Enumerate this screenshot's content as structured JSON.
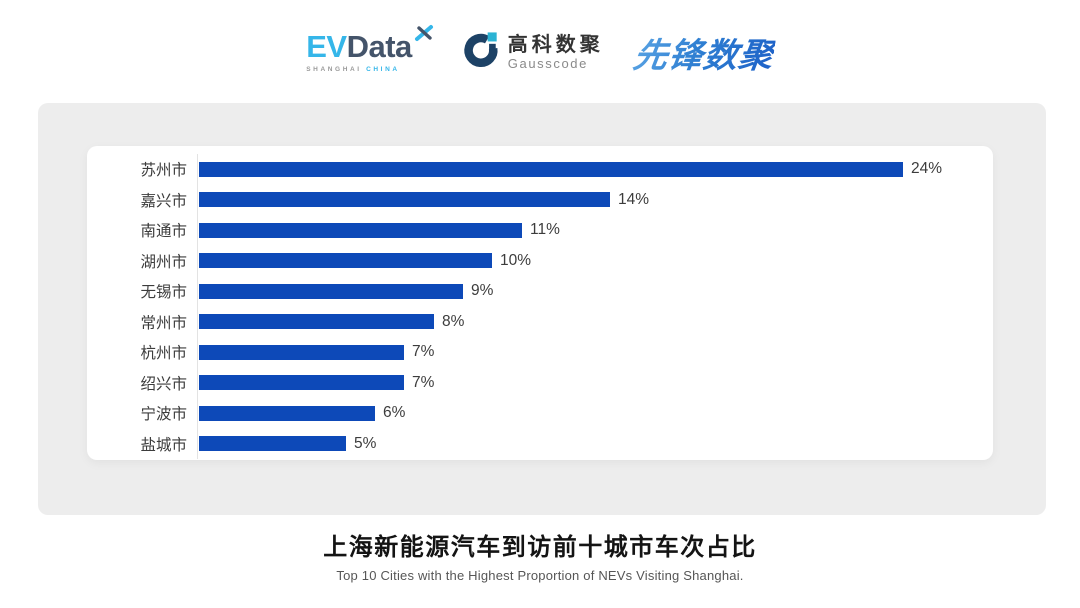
{
  "header": {
    "evdata_logo": {
      "ev": "EV",
      "data": "Data",
      "sub_left": "SHANGHAI",
      "sub_right": "CHINA"
    },
    "gausscode_logo": {
      "cn": "高科数聚",
      "en": "Gausscode"
    },
    "pioneer_logo": {
      "text": "先锋数聚"
    }
  },
  "chart_data": {
    "type": "bar",
    "orientation": "horizontal",
    "categories": [
      "苏州市",
      "嘉兴市",
      "南通市",
      "湖州市",
      "无锡市",
      "常州市",
      "杭州市",
      "绍兴市",
      "宁波市",
      "盐城市"
    ],
    "values": [
      24,
      14,
      11,
      10,
      9,
      8,
      7,
      7,
      6,
      5
    ],
    "value_labels": [
      "24%",
      "14%",
      "11%",
      "10%",
      "9%",
      "8%",
      "7%",
      "7%",
      "6%",
      "5%"
    ],
    "title": "上海新能源汽车到访前十城市车次占比",
    "subtitle": "Top 10 Cities with the Highest Proportion of  NEVs Visiting Shanghai.",
    "xlim": [
      0,
      24
    ],
    "grid": false,
    "legend": false,
    "bar_color": "#0d49b8"
  },
  "colors": {
    "bar_blue": "#0d49b8",
    "card_bg": "#ededed",
    "axis_line": "#e3e3e3",
    "label_text": "#3c3c3c",
    "evdata_light_blue": "#35b6e9",
    "evdata_slate": "#44546a",
    "gauss_navy": "#1d4266",
    "gauss_cyan": "#2bb3d4",
    "pioneer_blue": "#2f7fd2"
  }
}
